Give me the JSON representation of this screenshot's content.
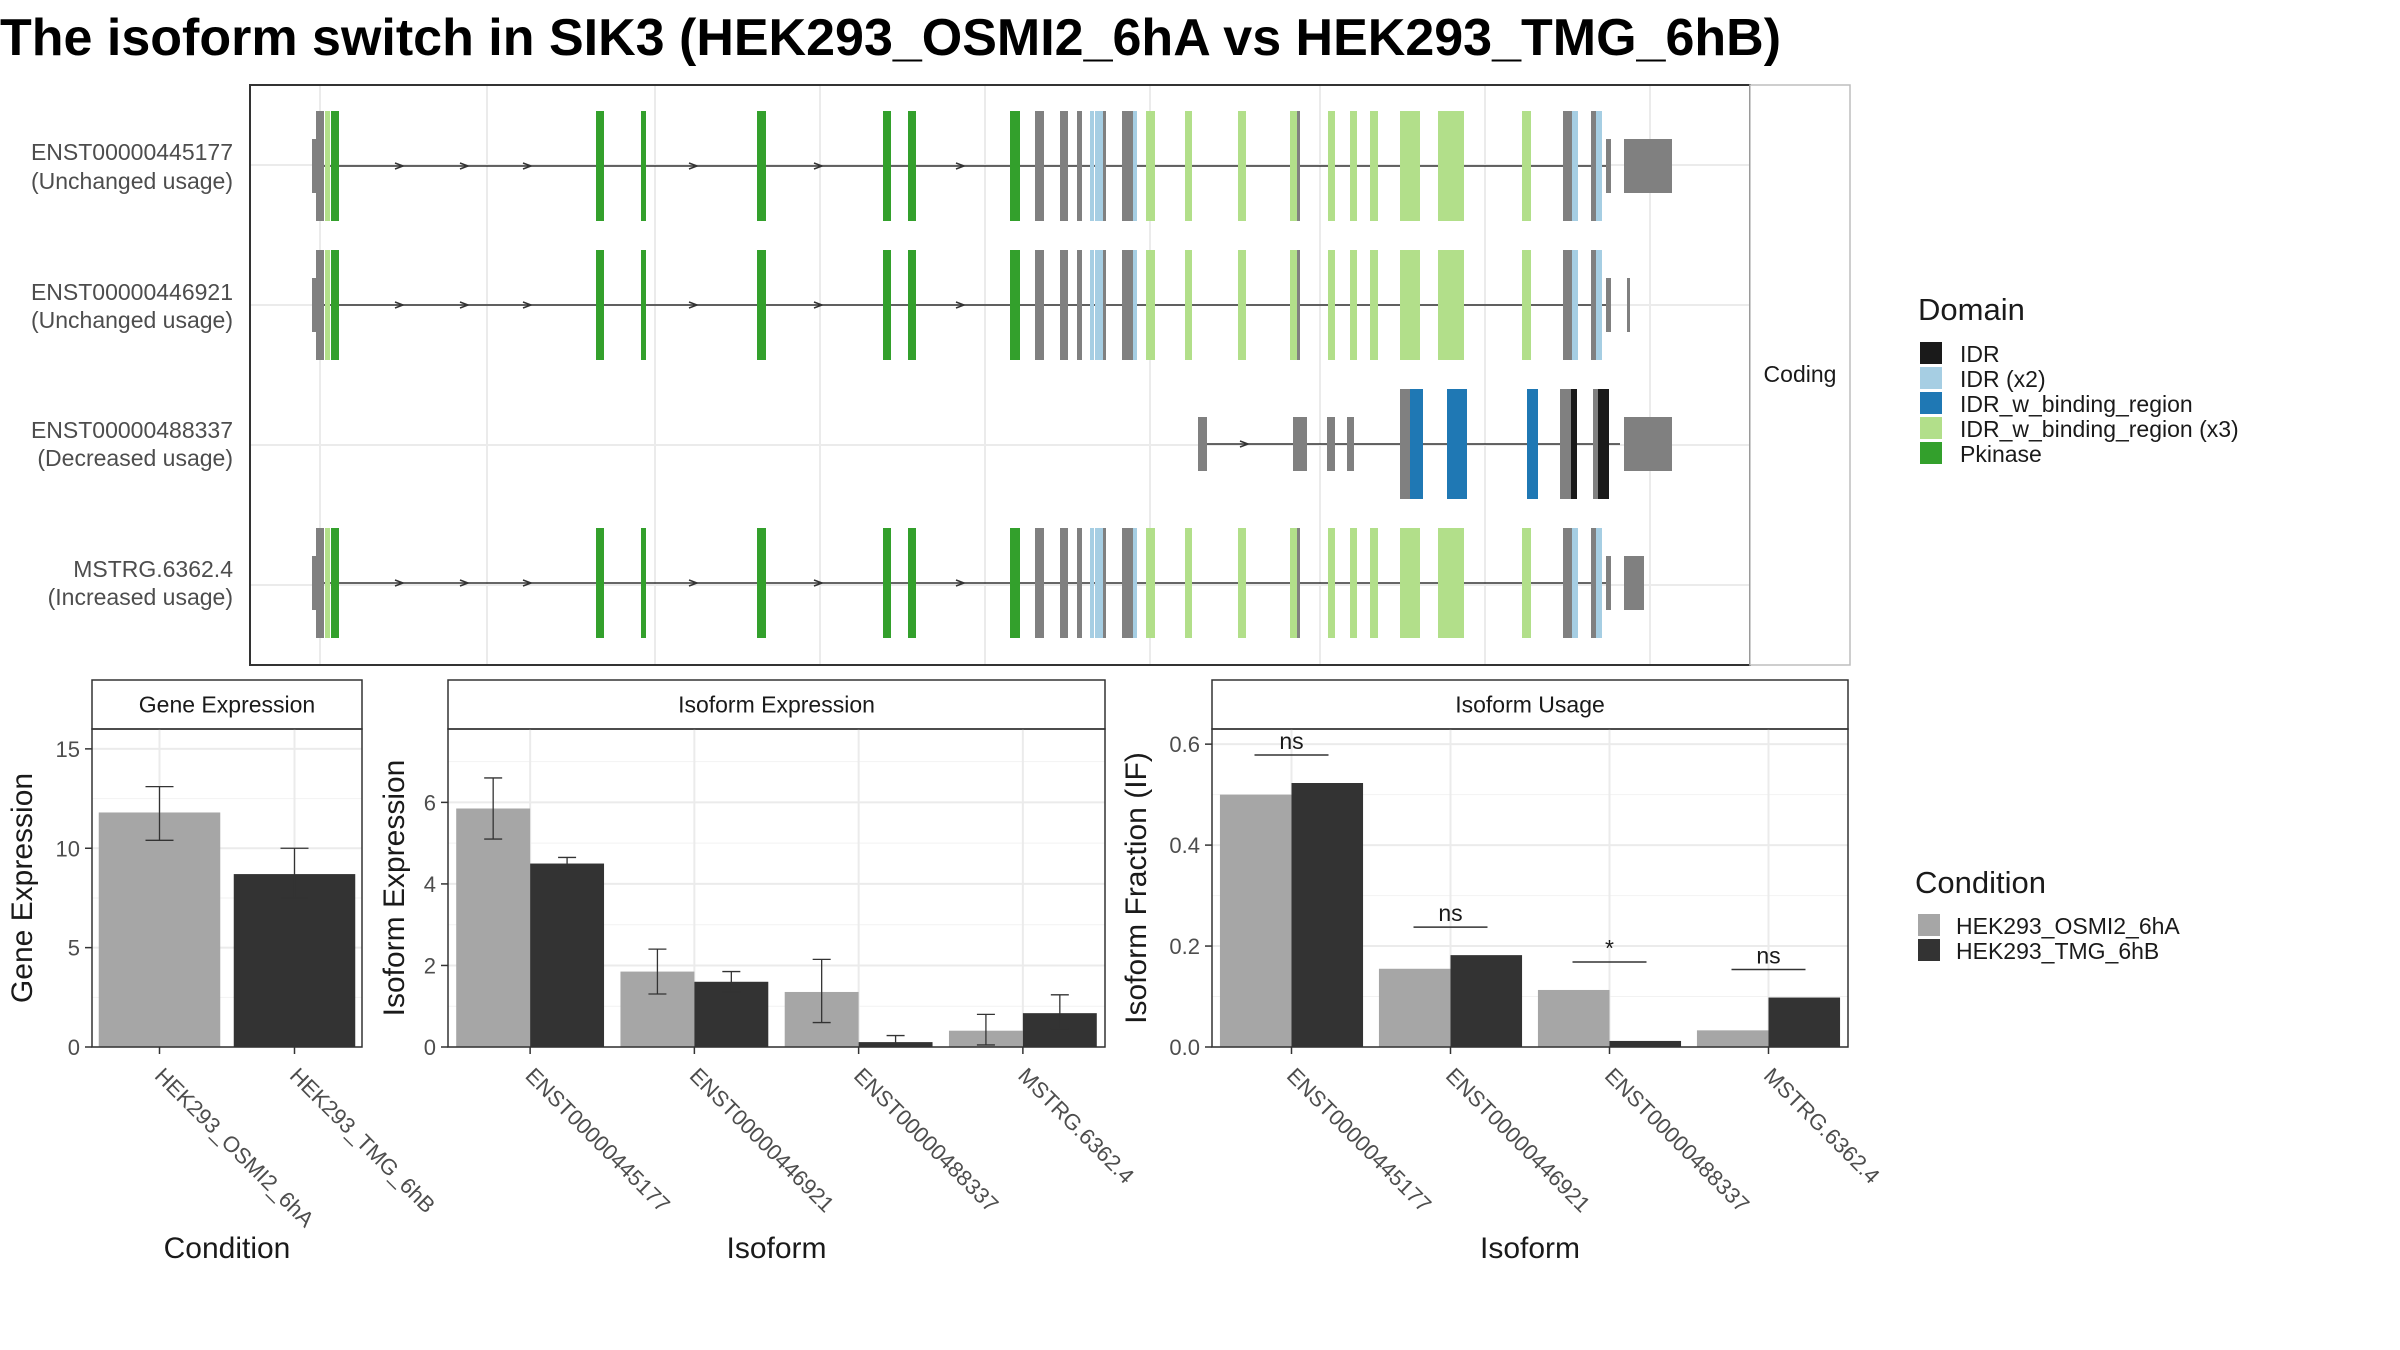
{
  "title": "The isoform switch in SIK3 (HEK293_OSMI2_6hA vs HEK293_TMG_6hB)",
  "colors": {
    "IDR": "#1a1a1a",
    "IDR (x2)": "#a6cee3",
    "IDR_w_binding_region": "#1f78b4",
    "IDR_w_binding_region (x3)": "#b2df8a",
    "Pkinase": "#33a02c",
    "noncoding_exon": "#808080",
    "cond_A": "#a6a6a6",
    "cond_B": "#333333"
  },
  "structure": {
    "facet_label": "Coding",
    "transcripts": [
      {
        "name": "ENST00000445177",
        "status": "(Unchanged usage)"
      },
      {
        "name": "ENST00000446921",
        "status": "(Unchanged usage)"
      },
      {
        "name": "ENST00000488337",
        "status": "(Decreased usage)"
      },
      {
        "name": "MSTRG.6362.4",
        "status": "(Increased usage)"
      }
    ]
  },
  "domain_legend": {
    "title": "Domain",
    "items": [
      "IDR",
      "IDR (x2)",
      "IDR_w_binding_region",
      "IDR_w_binding_region (x3)",
      "Pkinase"
    ]
  },
  "condition_legend": {
    "title": "Condition",
    "items": [
      "HEK293_OSMI2_6hA",
      "HEK293_TMG_6hB"
    ]
  },
  "chart_data": [
    {
      "type": "bar",
      "title": "Gene Expression",
      "xlabel": "Condition",
      "ylabel": "Gene Expression",
      "categories": [
        "HEK293_OSMI2_6hA",
        "HEK293_TMG_6hB"
      ],
      "values": [
        11.8,
        8.7
      ],
      "error": [
        [
          10.4,
          13.1
        ],
        [
          7.5,
          10.0
        ]
      ],
      "ylim": [
        0,
        16
      ],
      "yticks": [
        0,
        5,
        10,
        15
      ]
    },
    {
      "type": "bar",
      "title": "Isoform Expression",
      "xlabel": "Isoform",
      "ylabel": "Isoform Expression",
      "categories": [
        "ENST00000445177",
        "ENST00000446921",
        "ENST00000488337",
        "MSTRG.6362.4"
      ],
      "series": [
        {
          "name": "HEK293_OSMI2_6hA",
          "values": [
            5.85,
            1.85,
            1.35,
            0.4
          ],
          "error": [
            [
              5.1,
              6.6
            ],
            [
              1.3,
              2.4
            ],
            [
              0.6,
              2.15
            ],
            [
              0.05,
              0.8
            ]
          ]
        },
        {
          "name": "HEK293_TMG_6hB",
          "values": [
            4.5,
            1.6,
            0.12,
            0.83
          ],
          "error": [
            [
              4.38,
              4.65
            ],
            [
              1.35,
              1.85
            ],
            [
              0.02,
              0.28
            ],
            [
              0.45,
              1.28
            ]
          ]
        }
      ],
      "ylim": [
        0,
        7.8
      ],
      "yticks": [
        0,
        2,
        4,
        6
      ]
    },
    {
      "type": "bar",
      "title": "Isoform Usage",
      "xlabel": "Isoform",
      "ylabel": "Isoform Fraction (IF)",
      "categories": [
        "ENST00000445177",
        "ENST00000446921",
        "ENST00000488337",
        "MSTRG.6362.4"
      ],
      "series": [
        {
          "name": "HEK293_OSMI2_6hA",
          "values": [
            0.5,
            0.155,
            0.113,
            0.033
          ]
        },
        {
          "name": "HEK293_TMG_6hB",
          "values": [
            0.523,
            0.182,
            0.012,
            0.098
          ]
        }
      ],
      "significance": [
        "ns",
        "ns",
        "*",
        "ns"
      ],
      "ylim": [
        0,
        0.63
      ],
      "yticks": [
        "0.0",
        "0.2",
        "0.4",
        "0.6"
      ]
    }
  ]
}
